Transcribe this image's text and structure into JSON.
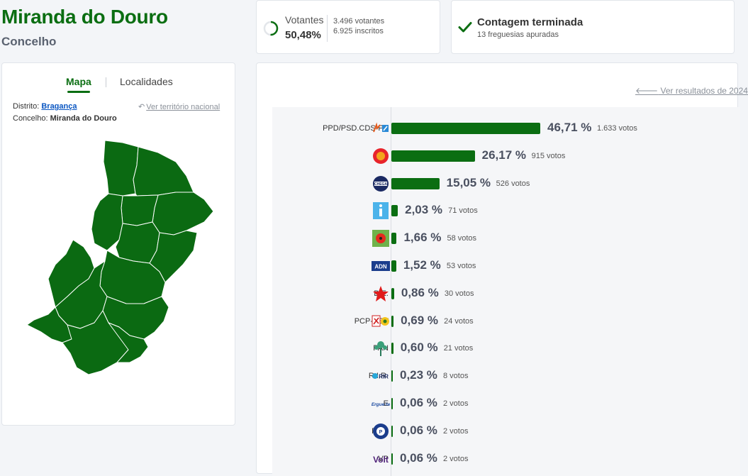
{
  "header": {
    "title": "Miranda do Douro",
    "subtitle": "Concelho"
  },
  "turnout": {
    "label": "Votantes",
    "percent": "50,48%",
    "percent_value": 50.48,
    "voters": "3.496 votantes",
    "registered": "6.925 inscritos"
  },
  "count": {
    "title": "Contagem terminada",
    "subtitle": "13 freguesias apuradas"
  },
  "map_panel": {
    "tabs": [
      "Mapa",
      "Localidades"
    ],
    "district_label": "Distrito:",
    "district_value": "Bragança",
    "county_label": "Concelho:",
    "county_value": "Miranda do Douro",
    "national_link": "Ver território nacional"
  },
  "results_panel": {
    "back_link": "Ver resultados de 2024"
  },
  "colors": {
    "accent": "#0b6e12",
    "link": "#0a56c2"
  },
  "parties": [
    {
      "name": "PPD/PSD.CDS-PP",
      "pct": "46,71 %",
      "pct_value": 46.71,
      "votes": "1.633 votos",
      "logo": "psd-cds-logo"
    },
    {
      "name": "PS",
      "pct": "26,17 %",
      "pct_value": 26.17,
      "votes": "915 votos",
      "logo": "ps-logo"
    },
    {
      "name": "CH",
      "pct": "15,05 %",
      "pct_value": 15.05,
      "votes": "526 votos",
      "logo": "chega-logo"
    },
    {
      "name": "IL",
      "pct": "2,03 %",
      "pct_value": 2.03,
      "votes": "71 votos",
      "logo": "il-logo"
    },
    {
      "name": "L",
      "pct": "1,66 %",
      "pct_value": 1.66,
      "votes": "58 votos",
      "logo": "livre-logo"
    },
    {
      "name": "ADN",
      "pct": "1,52 %",
      "pct_value": 1.52,
      "votes": "53 votos",
      "logo": "adn-logo"
    },
    {
      "name": "B.E.",
      "pct": "0,86 %",
      "pct_value": 0.86,
      "votes": "30 votos",
      "logo": "be-logo"
    },
    {
      "name": "PCP-PEV",
      "pct": "0,69 %",
      "pct_value": 0.69,
      "votes": "24 votos",
      "logo": "pcp-pev-logo"
    },
    {
      "name": "PAN",
      "pct": "0,60 %",
      "pct_value": 0.6,
      "votes": "21 votos",
      "logo": "pan-logo"
    },
    {
      "name": "R.I.R.",
      "pct": "0,23 %",
      "pct_value": 0.23,
      "votes": "8 votos",
      "logo": "rir-logo"
    },
    {
      "name": "E",
      "pct": "0,06 %",
      "pct_value": 0.06,
      "votes": "2 votos",
      "logo": "ergue-te-logo"
    },
    {
      "name": "PPM",
      "pct": "0,06 %",
      "pct_value": 0.06,
      "votes": "2 votos",
      "logo": "ppm-logo"
    },
    {
      "name": "VP",
      "pct": "0,06 %",
      "pct_value": 0.06,
      "votes": "2 votos",
      "logo": "volt-logo"
    }
  ]
}
